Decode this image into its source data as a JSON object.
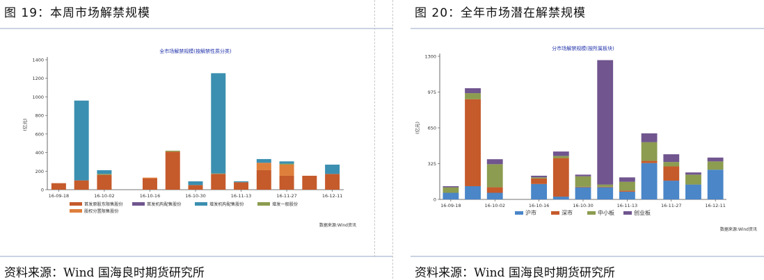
{
  "panels": [
    {
      "figure_title": "图 19：本周市场解禁规模",
      "source_text": "资料来源：Wind 国海良时期货研究所",
      "chart_data": {
        "type": "bar",
        "title": "全市场解禁规模(按解禁性质分类)",
        "ylabel": "(亿元)",
        "ylim": [
          0,
          1400
        ],
        "yticks": [
          0,
          200,
          400,
          600,
          800,
          1000,
          1200,
          1400
        ],
        "categories": [
          "16-09-18",
          "16-09-25",
          "16-10-02",
          "16-10-09",
          "16-10-16",
          "16-10-23",
          "16-10-30",
          "16-11-06",
          "16-11-13",
          "16-11-20",
          "16-11-27",
          "16-12-04",
          "16-12-11"
        ],
        "xtick_labels": [
          "16-09-18",
          "",
          "16-10-02",
          "",
          "16-10-16",
          "",
          "16-10-30",
          "",
          "16-11-13",
          "",
          "16-11-27",
          "",
          "16-12-11"
        ],
        "grid": false,
        "legend_position": "bottom",
        "stacked": true,
        "series": [
          {
            "name": "首发原股东限售股份",
            "color": "#c55a2b",
            "values": [
              70,
              100,
              160,
              0,
              120,
              410,
              50,
              170,
              80,
              210,
              150,
              150,
              170
            ]
          },
          {
            "name": "股权分置限售股份",
            "color": "#df7f3c",
            "values": [
              0,
              0,
              0,
              0,
              10,
              0,
              0,
              0,
              0,
              80,
              120,
              0,
              0
            ]
          },
          {
            "name": "增发一般股份",
            "color": "#8c9c50",
            "values": [
              0,
              0,
              10,
              0,
              0,
              10,
              0,
              5,
              0,
              0,
              10,
              0,
              0
            ]
          },
          {
            "name": "首发机构配售股份",
            "color": "#70558f",
            "values": [
              0,
              0,
              0,
              0,
              0,
              0,
              0,
              0,
              0,
              0,
              0,
              0,
              0
            ]
          },
          {
            "name": "增发机构配售股份",
            "color": "#3b8fb0",
            "values": [
              0,
              860,
              40,
              0,
              0,
              0,
              40,
              1080,
              10,
              40,
              25,
              0,
              100
            ]
          }
        ],
        "legend_order": [
          0,
          3,
          4,
          2,
          1
        ],
        "source_note": "数据来源:Wind资讯"
      }
    },
    {
      "figure_title": "图 20：全年市场潜在解禁规模",
      "source_text": "资料来源：Wind 国海良时期货研究所",
      "chart_data": {
        "type": "bar",
        "title": "分市场解禁规模(按所属板块)",
        "ylabel": "(亿元)",
        "ylim": [
          0,
          1300
        ],
        "yticks": [
          0,
          325,
          650,
          975,
          1300
        ],
        "categories": [
          "16-09-18",
          "16-09-25",
          "16-10-02",
          "16-10-09",
          "16-10-16",
          "16-10-23",
          "16-10-30",
          "16-11-06",
          "16-11-13",
          "16-11-20",
          "16-11-27",
          "16-12-04",
          "16-12-11"
        ],
        "xtick_labels": [
          "16-09-18",
          "",
          "16-10-02",
          "",
          "16-10-16",
          "",
          "16-10-30",
          "",
          "16-11-13",
          "",
          "16-11-27",
          "",
          "16-12-11"
        ],
        "grid": false,
        "legend_position": "bottom",
        "stacked": true,
        "series": [
          {
            "name": "沪市",
            "color": "#4a86c8",
            "values": [
              60,
              120,
              60,
              0,
              140,
              25,
              110,
              110,
              70,
              330,
              170,
              135,
              270
            ]
          },
          {
            "name": "深市",
            "color": "#c55a2b",
            "values": [
              0,
              790,
              50,
              0,
              50,
              350,
              5,
              5,
              10,
              20,
              130,
              0,
              0
            ]
          },
          {
            "name": "中小板",
            "color": "#8c9c50",
            "values": [
              50,
              55,
              210,
              0,
              10,
              20,
              95,
              20,
              80,
              170,
              40,
              90,
              75
            ]
          },
          {
            "name": "创业板",
            "color": "#70558f",
            "values": [
              10,
              45,
              45,
              0,
              15,
              40,
              15,
              1130,
              40,
              80,
              70,
              20,
              35
            ]
          }
        ],
        "source_note": "数据来源:Wind资讯"
      }
    }
  ]
}
